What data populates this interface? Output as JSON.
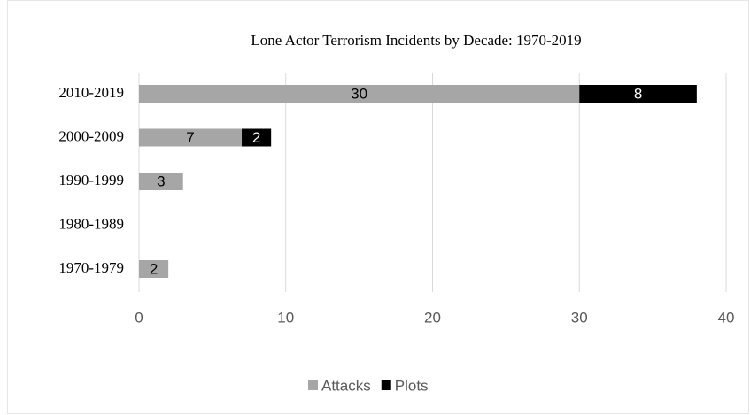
{
  "chart_data": {
    "type": "stacked_bar_horizontal",
    "title": "Lone Actor Terrorism Incidents by Decade: 1970-2019",
    "categories": [
      "2010-2019",
      "2000-2009",
      "1990-1999",
      "1980-1989",
      "1970-1979"
    ],
    "series": [
      {
        "name": "Attacks",
        "color": "#a6a6a6",
        "label_color": "#000000",
        "values": [
          30,
          7,
          3,
          null,
          2
        ]
      },
      {
        "name": "Plots",
        "color": "#000000",
        "label_color": "#ffffff",
        "values": [
          8,
          2,
          null,
          null,
          null
        ]
      }
    ],
    "xlim": [
      0,
      40
    ],
    "xticks": [
      0,
      10,
      20,
      30,
      40
    ],
    "grid": true,
    "legend": "bottom"
  }
}
